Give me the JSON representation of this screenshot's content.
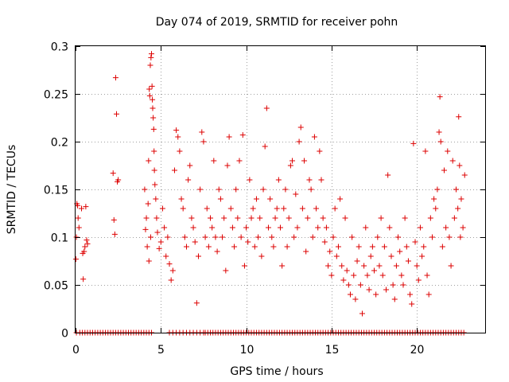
{
  "chart_data": {
    "type": "scatter",
    "title": "Day 074 of 2019, SRMTID for receiver pohn",
    "xlabel": "GPS time / hours",
    "ylabel": "SRMTID / TECUs",
    "xlim": [
      0,
      24
    ],
    "ylim": [
      0,
      0.3
    ],
    "xticks": [
      0,
      5,
      10,
      15,
      20
    ],
    "yticks": [
      0,
      0.05,
      0.1,
      0.15,
      0.2,
      0.25,
      0.3
    ],
    "xtick_labels": [
      "0",
      "5",
      "10",
      "15",
      "20"
    ],
    "ytick_labels": [
      "0",
      "0.05",
      "0.1",
      "0.15",
      "0.2",
      "0.25",
      "0.3"
    ],
    "grid": true,
    "marker": "+",
    "color": "#dd0000",
    "series": [
      {
        "name": "SRMTID",
        "points": [
          [
            0.02,
            0.077
          ],
          [
            0.05,
            0.1
          ],
          [
            0.08,
            0.135
          ],
          [
            0.12,
            0.133
          ],
          [
            0.15,
            0.12
          ],
          [
            0.2,
            0.11
          ],
          [
            0.35,
            0.13
          ],
          [
            0.42,
            0.083
          ],
          [
            0.45,
            0.056
          ],
          [
            0.5,
            0.085
          ],
          [
            0.55,
            0.09
          ],
          [
            0.6,
            0.132
          ],
          [
            0.65,
            0.097
          ],
          [
            0.7,
            0.093
          ],
          [
            2.2,
            0.167
          ],
          [
            2.25,
            0.118
          ],
          [
            2.3,
            0.103
          ],
          [
            2.35,
            0.267
          ],
          [
            2.4,
            0.229
          ],
          [
            2.45,
            0.158
          ],
          [
            2.5,
            0.16
          ],
          [
            4.05,
            0.15
          ],
          [
            4.1,
            0.108
          ],
          [
            4.15,
            0.12
          ],
          [
            4.2,
            0.09
          ],
          [
            4.25,
            0.135
          ],
          [
            4.28,
            0.18
          ],
          [
            4.3,
            0.075
          ],
          [
            4.32,
            0.255
          ],
          [
            4.35,
            0.248
          ],
          [
            4.38,
            0.28
          ],
          [
            4.4,
            0.1
          ],
          [
            4.42,
            0.288
          ],
          [
            4.45,
            0.292
          ],
          [
            4.48,
            0.258
          ],
          [
            4.5,
            0.244
          ],
          [
            4.52,
            0.235
          ],
          [
            4.55,
            0.225
          ],
          [
            4.58,
            0.213
          ],
          [
            4.6,
            0.19
          ],
          [
            4.62,
            0.17
          ],
          [
            4.65,
            0.155
          ],
          [
            4.7,
            0.14
          ],
          [
            4.75,
            0.12
          ],
          [
            4.8,
            0.105
          ],
          [
            4.9,
            0.088
          ],
          [
            5.0,
            0.095
          ],
          [
            5.1,
            0.13
          ],
          [
            5.2,
            0.11
          ],
          [
            5.3,
            0.08
          ],
          [
            5.4,
            0.1
          ],
          [
            5.5,
            0.072
          ],
          [
            5.6,
            0.055
          ],
          [
            5.7,
            0.065
          ],
          [
            5.8,
            0.17
          ],
          [
            5.9,
            0.212
          ],
          [
            6.0,
            0.205
          ],
          [
            6.1,
            0.19
          ],
          [
            6.2,
            0.14
          ],
          [
            6.3,
            0.13
          ],
          [
            6.4,
            0.1
          ],
          [
            6.5,
            0.09
          ],
          [
            6.6,
            0.16
          ],
          [
            6.7,
            0.175
          ],
          [
            6.8,
            0.12
          ],
          [
            6.9,
            0.11
          ],
          [
            7.0,
            0.095
          ],
          [
            7.1,
            0.031
          ],
          [
            7.2,
            0.08
          ],
          [
            7.3,
            0.15
          ],
          [
            7.4,
            0.21
          ],
          [
            7.5,
            0.2
          ],
          [
            7.6,
            0.1
          ],
          [
            7.7,
            0.13
          ],
          [
            7.8,
            0.09
          ],
          [
            7.9,
            0.12
          ],
          [
            8.0,
            0.11
          ],
          [
            8.1,
            0.18
          ],
          [
            8.2,
            0.1
          ],
          [
            8.3,
            0.085
          ],
          [
            8.4,
            0.15
          ],
          [
            8.5,
            0.14
          ],
          [
            8.6,
            0.1
          ],
          [
            8.7,
            0.12
          ],
          [
            8.8,
            0.065
          ],
          [
            8.9,
            0.175
          ],
          [
            9.0,
            0.205
          ],
          [
            9.1,
            0.13
          ],
          [
            9.2,
            0.11
          ],
          [
            9.3,
            0.09
          ],
          [
            9.4,
            0.15
          ],
          [
            9.5,
            0.12
          ],
          [
            9.6,
            0.18
          ],
          [
            9.7,
            0.1
          ],
          [
            9.8,
            0.207
          ],
          [
            9.9,
            0.07
          ],
          [
            10.0,
            0.11
          ],
          [
            10.1,
            0.095
          ],
          [
            10.2,
            0.16
          ],
          [
            10.3,
            0.12
          ],
          [
            10.4,
            0.13
          ],
          [
            10.5,
            0.09
          ],
          [
            10.6,
            0.14
          ],
          [
            10.7,
            0.1
          ],
          [
            10.8,
            0.12
          ],
          [
            10.9,
            0.08
          ],
          [
            11.0,
            0.15
          ],
          [
            11.1,
            0.195
          ],
          [
            11.2,
            0.235
          ],
          [
            11.3,
            0.11
          ],
          [
            11.4,
            0.14
          ],
          [
            11.5,
            0.1
          ],
          [
            11.6,
            0.09
          ],
          [
            11.7,
            0.12
          ],
          [
            11.8,
            0.13
          ],
          [
            11.9,
            0.16
          ],
          [
            12.0,
            0.11
          ],
          [
            12.1,
            0.07
          ],
          [
            12.2,
            0.13
          ],
          [
            12.3,
            0.15
          ],
          [
            12.4,
            0.09
          ],
          [
            12.5,
            0.12
          ],
          [
            12.6,
            0.175
          ],
          [
            12.7,
            0.18
          ],
          [
            12.8,
            0.1
          ],
          [
            12.9,
            0.145
          ],
          [
            13.0,
            0.11
          ],
          [
            13.1,
            0.2
          ],
          [
            13.2,
            0.215
          ],
          [
            13.3,
            0.13
          ],
          [
            13.4,
            0.18
          ],
          [
            13.5,
            0.085
          ],
          [
            13.6,
            0.12
          ],
          [
            13.7,
            0.16
          ],
          [
            13.8,
            0.15
          ],
          [
            13.9,
            0.1
          ],
          [
            14.0,
            0.205
          ],
          [
            14.1,
            0.13
          ],
          [
            14.2,
            0.11
          ],
          [
            14.3,
            0.19
          ],
          [
            14.4,
            0.16
          ],
          [
            14.5,
            0.12
          ],
          [
            14.6,
            0.095
          ],
          [
            14.7,
            0.11
          ],
          [
            14.8,
            0.07
          ],
          [
            14.9,
            0.085
          ],
          [
            15.0,
            0.06
          ],
          [
            15.1,
            0.1
          ],
          [
            15.2,
            0.13
          ],
          [
            15.3,
            0.08
          ],
          [
            15.4,
            0.09
          ],
          [
            15.5,
            0.14
          ],
          [
            15.6,
            0.07
          ],
          [
            15.7,
            0.055
          ],
          [
            15.8,
            0.12
          ],
          [
            15.9,
            0.065
          ],
          [
            16.0,
            0.05
          ],
          [
            16.1,
            0.04
          ],
          [
            16.2,
            0.1
          ],
          [
            16.3,
            0.06
          ],
          [
            16.4,
            0.035
          ],
          [
            16.5,
            0.075
          ],
          [
            16.6,
            0.09
          ],
          [
            16.7,
            0.05
          ],
          [
            16.8,
            0.02
          ],
          [
            16.9,
            0.07
          ],
          [
            17.0,
            0.11
          ],
          [
            17.1,
            0.06
          ],
          [
            17.2,
            0.045
          ],
          [
            17.3,
            0.08
          ],
          [
            17.4,
            0.09
          ],
          [
            17.5,
            0.065
          ],
          [
            17.6,
            0.04
          ],
          [
            17.7,
            0.1
          ],
          [
            17.8,
            0.07
          ],
          [
            17.9,
            0.12
          ],
          [
            18.0,
            0.06
          ],
          [
            18.1,
            0.09
          ],
          [
            18.2,
            0.045
          ],
          [
            18.3,
            0.165
          ],
          [
            18.4,
            0.11
          ],
          [
            18.5,
            0.08
          ],
          [
            18.6,
            0.05
          ],
          [
            18.7,
            0.035
          ],
          [
            18.8,
            0.07
          ],
          [
            18.9,
            0.1
          ],
          [
            19.0,
            0.085
          ],
          [
            19.1,
            0.06
          ],
          [
            19.2,
            0.05
          ],
          [
            19.3,
            0.12
          ],
          [
            19.4,
            0.09
          ],
          [
            19.5,
            0.075
          ],
          [
            19.6,
            0.04
          ],
          [
            19.7,
            0.03
          ],
          [
            19.8,
            0.198
          ],
          [
            19.9,
            0.095
          ],
          [
            20.0,
            0.07
          ],
          [
            20.1,
            0.055
          ],
          [
            20.2,
            0.11
          ],
          [
            20.3,
            0.08
          ],
          [
            20.4,
            0.09
          ],
          [
            20.5,
            0.19
          ],
          [
            20.6,
            0.06
          ],
          [
            20.7,
            0.04
          ],
          [
            20.8,
            0.12
          ],
          [
            20.9,
            0.1
          ],
          [
            21.0,
            0.14
          ],
          [
            21.1,
            0.13
          ],
          [
            21.2,
            0.15
          ],
          [
            21.3,
            0.21
          ],
          [
            21.35,
            0.247
          ],
          [
            21.4,
            0.2
          ],
          [
            21.5,
            0.09
          ],
          [
            21.6,
            0.17
          ],
          [
            21.7,
            0.11
          ],
          [
            21.8,
            0.19
          ],
          [
            21.9,
            0.1
          ],
          [
            22.0,
            0.07
          ],
          [
            22.1,
            0.18
          ],
          [
            22.2,
            0.12
          ],
          [
            22.3,
            0.15
          ],
          [
            22.4,
            0.13
          ],
          [
            22.45,
            0.226
          ],
          [
            22.5,
            0.175
          ],
          [
            22.55,
            0.1
          ],
          [
            22.6,
            0.14
          ],
          [
            22.7,
            0.11
          ],
          [
            22.8,
            0.165
          ]
        ]
      }
    ],
    "zero_points_x": [
      0.05,
      0.25,
      0.4,
      0.55,
      0.7,
      0.85,
      1.0,
      1.15,
      1.3,
      1.45,
      1.6,
      1.75,
      1.9,
      2.05,
      2.2,
      2.35,
      2.5,
      2.65,
      2.8,
      2.95,
      3.1,
      3.25,
      3.4,
      3.55,
      3.7,
      3.85,
      4.0,
      4.15,
      4.3,
      4.45,
      5.5,
      5.7,
      5.9,
      6.1,
      6.3,
      6.5,
      6.7,
      6.9,
      7.1,
      7.3,
      7.5,
      7.6,
      7.75,
      7.9,
      8.05,
      8.2,
      8.35,
      8.5,
      8.65,
      8.8,
      8.95,
      9.1,
      9.25,
      9.4,
      9.55,
      9.7,
      9.85,
      10.0,
      10.15,
      10.3,
      10.45,
      10.6,
      10.75,
      10.9,
      11.05,
      11.2,
      11.35,
      11.5,
      11.65,
      11.8,
      11.95,
      12.1,
      12.25,
      12.4,
      12.55,
      12.7,
      12.85,
      13.0,
      13.15,
      13.3,
      13.45,
      13.6,
      13.75,
      13.9,
      14.05,
      14.2,
      14.35,
      14.5,
      14.65,
      14.8,
      14.95,
      15.1,
      15.25,
      15.4,
      15.55,
      15.7,
      15.85,
      16.0,
      16.15,
      16.3,
      16.45,
      16.6,
      16.75,
      16.9,
      17.05,
      17.2,
      17.35,
      17.5,
      17.65,
      17.8,
      17.95,
      18.1,
      18.25,
      18.4,
      18.55,
      18.7,
      18.85,
      19.0,
      19.15,
      19.3,
      19.45,
      19.6,
      19.75,
      19.9,
      20.05,
      20.2,
      20.35,
      20.5,
      20.65,
      20.8,
      20.95,
      21.1,
      21.25,
      21.4,
      21.55,
      21.7,
      21.85,
      22.0,
      22.15,
      22.3,
      22.45,
      22.6,
      22.75
    ]
  }
}
